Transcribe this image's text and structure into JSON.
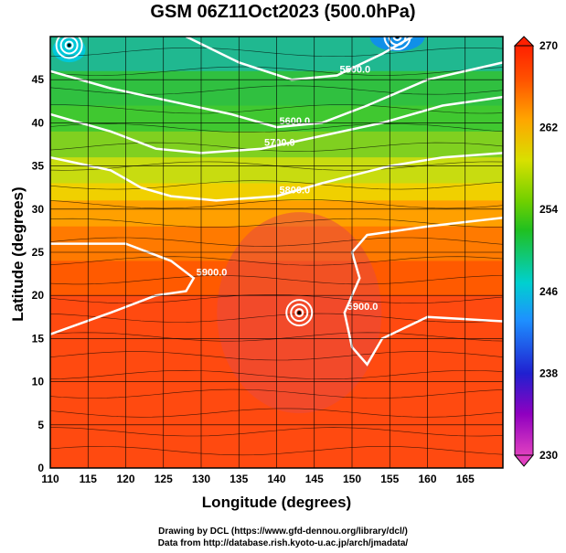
{
  "header": {
    "title": "GSM 06Z11Oct2023 (500.0hPa)"
  },
  "footer": {
    "credit1": "Drawing by DCL (https://www.gfd-dennou.org/library/dcl/)",
    "credit2": "Data from http://database.rish.kyoto-u.ac.jp/arch/jmadata/"
  },
  "chart_data": {
    "type": "heatmap",
    "title": "GSM 06Z11Oct2023 (500.0hPa)",
    "xlabel": "Longitude (degrees)",
    "ylabel": "Latitude  (degrees)",
    "xlim": [
      110,
      170
    ],
    "ylim": [
      0,
      50
    ],
    "x_ticks": [
      110,
      115,
      120,
      125,
      130,
      135,
      140,
      145,
      150,
      155,
      160,
      165
    ],
    "y_ticks": [
      0,
      5,
      10,
      15,
      20,
      25,
      30,
      35,
      40,
      45
    ],
    "grid": true,
    "overlay": "streamlines",
    "colorbar": {
      "min": 230,
      "max": 270,
      "ticks": [
        230,
        238,
        246,
        254,
        262,
        270
      ],
      "colors": [
        "#e040c0",
        "#7a00c8",
        "#2020d0",
        "#1e90ff",
        "#00d0d0",
        "#20c020",
        "#70d000",
        "#d8e000",
        "#ffa500",
        "#ff5000",
        "#ff2000"
      ]
    },
    "contours": [
      {
        "label": "5900.0",
        "points": [
          [
            110,
            15.5
          ],
          [
            118,
            18
          ],
          [
            124,
            20
          ],
          [
            128,
            20.5
          ],
          [
            129,
            22
          ],
          [
            126,
            24
          ],
          [
            120,
            26
          ],
          [
            113,
            26
          ],
          [
            110,
            26
          ]
        ]
      },
      {
        "label": "5900.0",
        "points": [
          [
            170,
            17
          ],
          [
            160,
            17.5
          ],
          [
            154,
            15
          ],
          [
            152,
            12
          ],
          [
            150,
            14
          ],
          [
            149,
            18
          ],
          [
            151,
            22
          ],
          [
            150,
            25
          ],
          [
            152,
            27
          ],
          [
            160,
            28
          ],
          [
            170,
            29
          ]
        ]
      },
      {
        "label": "5800.0",
        "points": [
          [
            110,
            36
          ],
          [
            118,
            34.5
          ],
          [
            122,
            32.5
          ],
          [
            126,
            31.5
          ],
          [
            132,
            31
          ],
          [
            140,
            31.5
          ],
          [
            146,
            33
          ],
          [
            155,
            35
          ],
          [
            162,
            36
          ],
          [
            170,
            36.5
          ]
        ]
      },
      {
        "label": "5700.0",
        "points": [
          [
            110,
            41
          ],
          [
            118,
            39
          ],
          [
            124,
            37
          ],
          [
            130,
            36.5
          ],
          [
            138,
            37
          ],
          [
            146,
            38.5
          ],
          [
            154,
            40
          ],
          [
            162,
            42
          ],
          [
            170,
            43
          ]
        ]
      },
      {
        "label": "5600.0",
        "points": [
          [
            110,
            46
          ],
          [
            118,
            44
          ],
          [
            126,
            42.5
          ],
          [
            134,
            41
          ],
          [
            140,
            39.5
          ],
          [
            146,
            40
          ],
          [
            152,
            42
          ],
          [
            160,
            45
          ],
          [
            170,
            47
          ]
        ]
      },
      {
        "label": "5500.0",
        "points": [
          [
            128,
            50
          ],
          [
            135,
            47
          ],
          [
            142,
            45
          ],
          [
            148,
            45.5
          ],
          [
            154,
            48
          ],
          [
            158,
            50
          ]
        ]
      }
    ],
    "features": [
      {
        "type": "vortex",
        "lon": 143,
        "lat": 18
      },
      {
        "type": "vortex",
        "lon": 112.5,
        "lat": 49
      },
      {
        "type": "vortex",
        "lon": 156,
        "lat": 50
      }
    ]
  }
}
